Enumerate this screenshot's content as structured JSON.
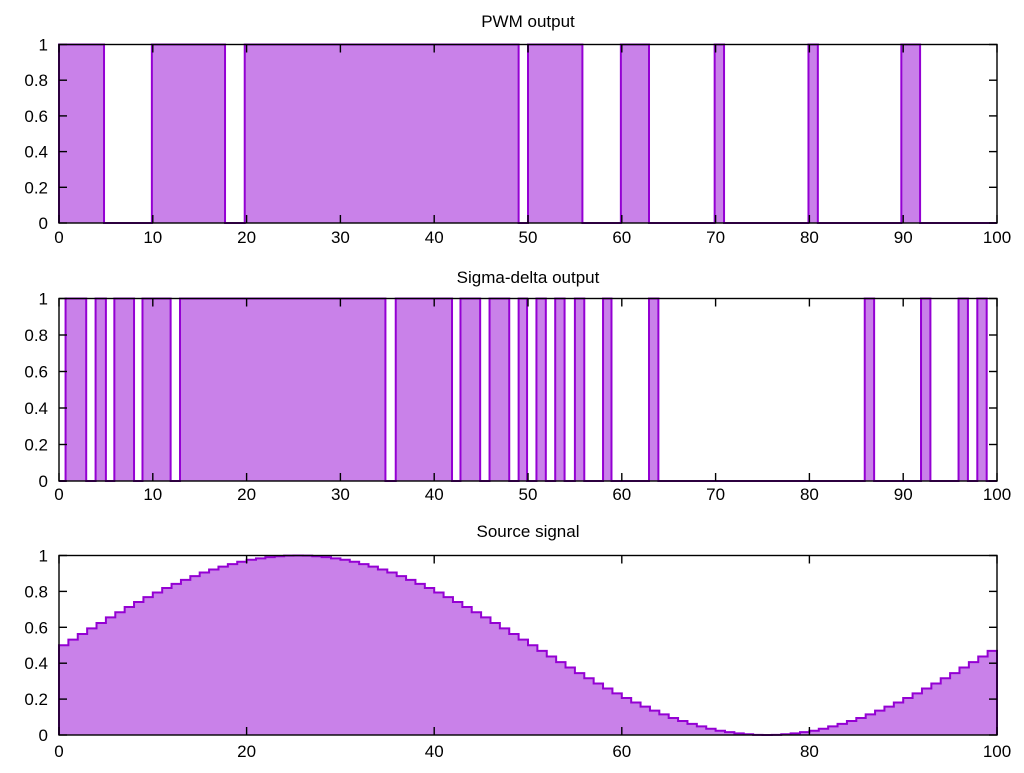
{
  "figure": {
    "background": "#ffffff"
  },
  "colors": {
    "fill": "#c981e9",
    "line": "#9400d3",
    "axis": "#000000",
    "text": "#000000",
    "background": "#ffffff"
  },
  "chart_data": [
    {
      "type": "area",
      "style": "pulse",
      "title": "PWM output",
      "xlim": [
        0,
        100
      ],
      "ylim": [
        0,
        1
      ],
      "grid": false,
      "legend": "none",
      "x_ticks": [
        "0",
        "10",
        "20",
        "30",
        "40",
        "50",
        "60",
        "70",
        "80",
        "90",
        "100"
      ],
      "y_ticks": [
        "0",
        "0.2",
        "0.4",
        "0.6",
        "0.8",
        "1"
      ],
      "on_value": 1,
      "off_value": 0,
      "on_intervals": [
        [
          0,
          4.8
        ],
        [
          9.9,
          17.7
        ],
        [
          19.8,
          49.0
        ],
        [
          50.0,
          55.8
        ],
        [
          59.9,
          62.9
        ],
        [
          69.9,
          70.9
        ],
        [
          79.9,
          80.9
        ],
        [
          89.8,
          91.8
        ]
      ]
    },
    {
      "type": "area",
      "style": "pulse",
      "title": "Sigma-delta output",
      "xlim": [
        0,
        100
      ],
      "ylim": [
        0,
        1
      ],
      "grid": false,
      "legend": "none",
      "x_ticks": [
        "0",
        "10",
        "20",
        "30",
        "40",
        "50",
        "60",
        "70",
        "80",
        "90",
        "100"
      ],
      "y_ticks": [
        "0",
        "0.2",
        "0.4",
        "0.6",
        "0.8",
        "1"
      ],
      "on_value": 1,
      "off_value": 0,
      "on_intervals": [
        [
          0.7,
          2.9
        ],
        [
          3.9,
          5.0
        ],
        [
          5.9,
          8.0
        ],
        [
          8.9,
          11.9
        ],
        [
          12.9,
          34.8
        ],
        [
          35.9,
          41.9
        ],
        [
          42.8,
          44.9
        ],
        [
          45.9,
          48.0
        ],
        [
          49.0,
          49.9
        ],
        [
          50.9,
          51.9
        ],
        [
          52.9,
          53.9
        ],
        [
          55.0,
          56.0
        ],
        [
          58.0,
          58.9
        ],
        [
          62.9,
          63.9
        ],
        [
          85.9,
          86.9
        ],
        [
          91.9,
          92.9
        ],
        [
          95.9,
          96.9
        ],
        [
          97.9,
          98.9
        ]
      ]
    },
    {
      "type": "area",
      "style": "steps",
      "title": "Source signal",
      "xlim": [
        0,
        100
      ],
      "ylim": [
        0,
        1
      ],
      "grid": false,
      "legend": "none",
      "x_ticks": [
        "0",
        "20",
        "40",
        "60",
        "80",
        "100"
      ],
      "y_ticks": [
        "0",
        "0.2",
        "0.4",
        "0.6",
        "0.8",
        "1"
      ],
      "x_start": 0,
      "x_step": 1,
      "values": [
        0.5,
        0.531,
        0.563,
        0.594,
        0.624,
        0.655,
        0.684,
        0.713,
        0.741,
        0.768,
        0.794,
        0.819,
        0.842,
        0.864,
        0.885,
        0.905,
        0.922,
        0.938,
        0.952,
        0.965,
        0.976,
        0.984,
        0.991,
        0.996,
        0.999,
        1,
        0.999,
        0.996,
        0.991,
        0.984,
        0.976,
        0.965,
        0.952,
        0.938,
        0.922,
        0.905,
        0.885,
        0.864,
        0.842,
        0.819,
        0.794,
        0.768,
        0.741,
        0.713,
        0.684,
        0.655,
        0.624,
        0.594,
        0.563,
        0.531,
        0.5,
        0.469,
        0.437,
        0.406,
        0.376,
        0.345,
        0.316,
        0.287,
        0.259,
        0.232,
        0.206,
        0.181,
        0.158,
        0.136,
        0.115,
        0.095,
        0.078,
        0.062,
        0.048,
        0.035,
        0.024,
        0.016,
        0.009,
        0.004,
        0.001,
        0,
        0.001,
        0.004,
        0.009,
        0.016,
        0.024,
        0.035,
        0.048,
        0.062,
        0.078,
        0.095,
        0.115,
        0.136,
        0.158,
        0.181,
        0.206,
        0.232,
        0.259,
        0.287,
        0.316,
        0.345,
        0.376,
        0.406,
        0.437,
        0.469
      ]
    }
  ]
}
